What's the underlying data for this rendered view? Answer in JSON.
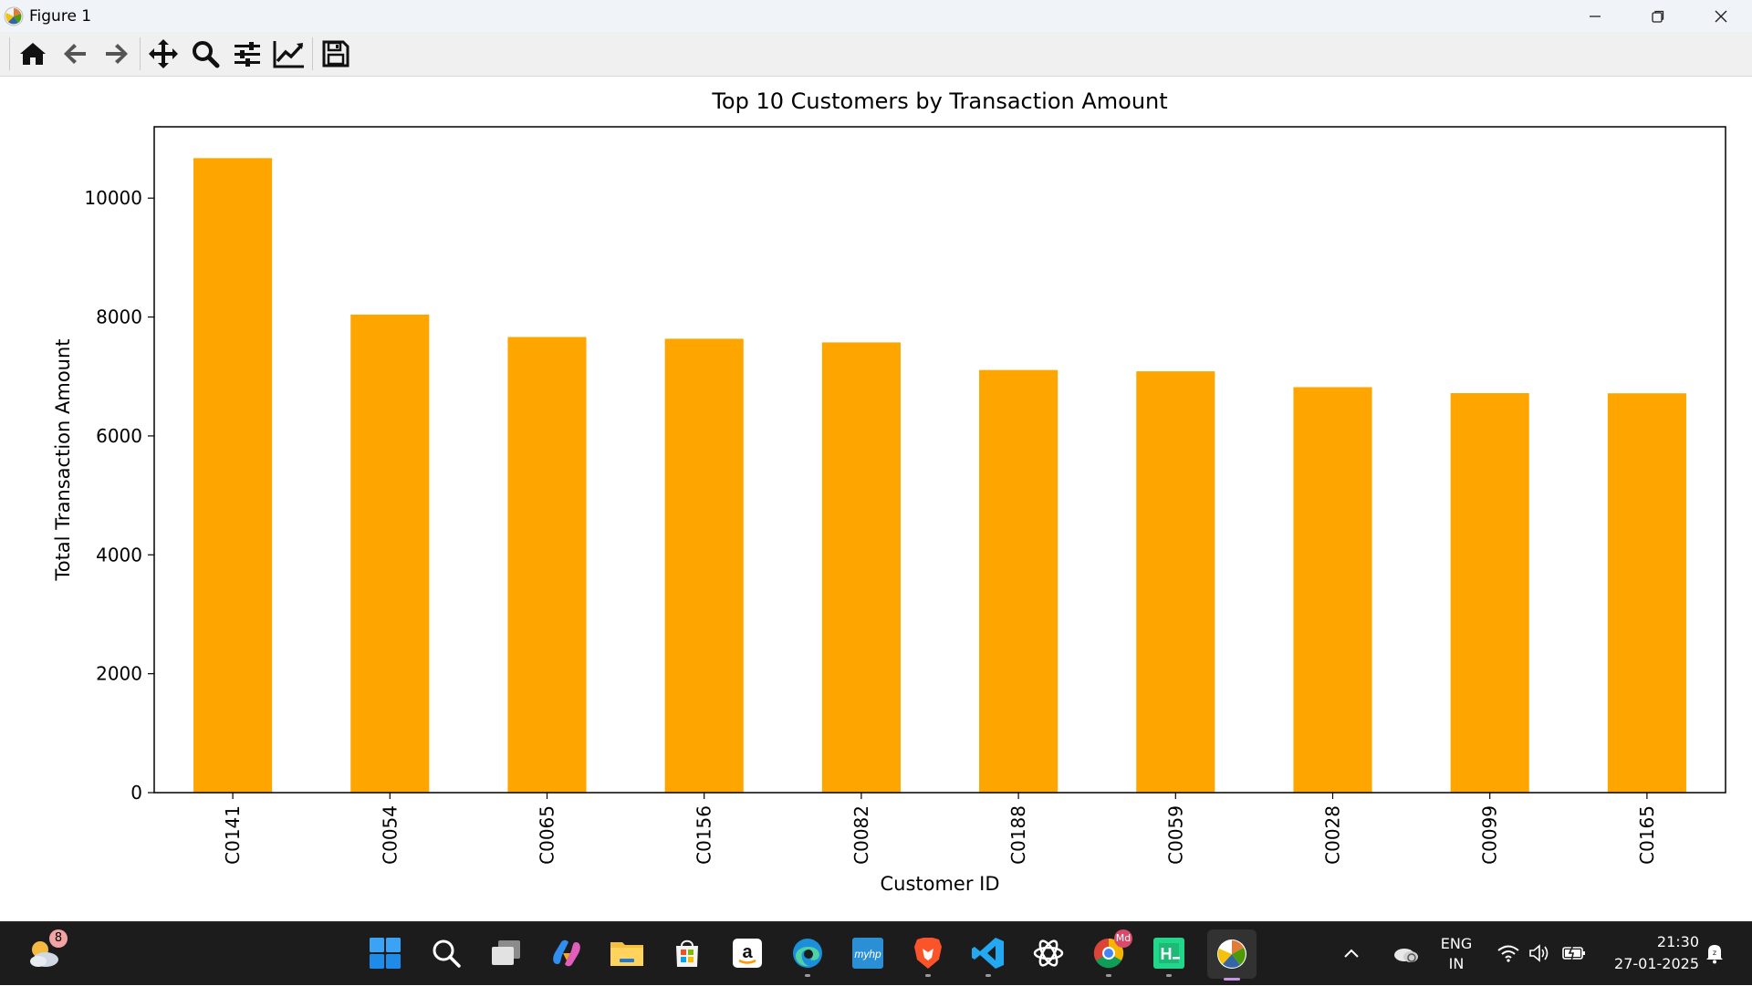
{
  "window": {
    "title": "Figure 1",
    "minimize_icon": "minimize-icon",
    "restore_icon": "restore-icon",
    "close_icon": "close-icon"
  },
  "toolbar": {
    "items": [
      "home-icon",
      "back-arrow-icon",
      "forward-arrow-icon",
      "pan-icon",
      "zoom-icon",
      "configure-subplots-icon",
      "edit-axis-icon",
      "save-icon"
    ]
  },
  "chart_data": {
    "type": "bar",
    "title": "Top 10 Customers by Transaction Amount",
    "xlabel": "Customer ID",
    "ylabel": "Total Transaction Amount",
    "categories": [
      "C0141",
      "C0054",
      "C0065",
      "C0156",
      "C0082",
      "C0188",
      "C0059",
      "C0028",
      "C0099",
      "C0165"
    ],
    "values": [
      10673,
      8041,
      7664,
      7635,
      7573,
      7109,
      7087,
      6820,
      6720,
      6717
    ],
    "ylim": [
      0,
      11200
    ],
    "yticks": [
      0,
      2000,
      4000,
      6000,
      8000,
      10000
    ],
    "ytick_labels": [
      "0",
      "2000",
      "4000",
      "6000",
      "8000",
      "10000"
    ],
    "bar_color": "#ffa500",
    "grid": false,
    "legend": "none"
  },
  "taskbar": {
    "widgets_badge": "8",
    "apps": [
      "weather-widget-icon",
      "windows-start-icon",
      "search-icon",
      "task-view-icon",
      "copilot-icon",
      "file-explorer-icon",
      "microsoft-store-icon",
      "amazon-icon",
      "edge-icon",
      "myhp-icon",
      "brave-icon",
      "vscode-icon",
      "chatgpt-icon",
      "chrome-icon",
      "pycharm-icon",
      "matplotlib-figure-icon"
    ],
    "chrome_badge": "Md",
    "myhp_label": "myhp",
    "tray": {
      "chevron_icon": "chevron-up-icon",
      "onedrive_icon": "onedrive-icon",
      "lang_line1": "ENG",
      "lang_line2": "IN",
      "wifi_icon": "wifi-icon",
      "volume_icon": "volume-icon",
      "battery_icon": "battery-icon",
      "time": "21:30",
      "date": "27-01-2025",
      "notification_icon": "notification-icon"
    }
  }
}
